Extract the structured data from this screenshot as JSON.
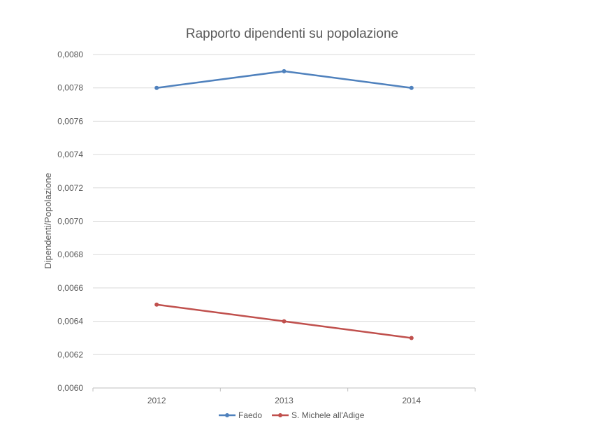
{
  "chart_data": {
    "type": "line",
    "title": "Rapporto dipendenti su popolazione",
    "xlabel": "",
    "ylabel": "Dipendenti/Popolazione",
    "categories": [
      "2012",
      "2013",
      "2014"
    ],
    "ylim": [
      0.006,
      0.008
    ],
    "yticks": [
      "0,0060",
      "0,0062",
      "0,0064",
      "0,0066",
      "0,0068",
      "0,0070",
      "0,0072",
      "0,0074",
      "0,0076",
      "0,0078",
      "0,0080"
    ],
    "grid": true,
    "legend_position": "bottom",
    "series": [
      {
        "name": "Faedo",
        "values": [
          0.0078,
          0.0079,
          0.0078
        ],
        "color": "#4f81bd"
      },
      {
        "name": "S. Michele all'Adige",
        "values": [
          0.0065,
          0.0064,
          0.0063
        ],
        "color": "#c0504d"
      }
    ]
  }
}
